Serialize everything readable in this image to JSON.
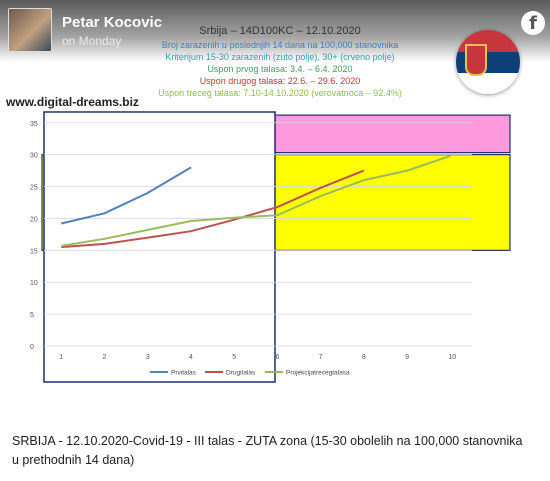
{
  "post": {
    "author": "Petar Kocovic",
    "time": "on Monday",
    "caption": "SRBIJA - 12.10.2020-Covid-19 - III talas - ZUTA zona (15-30 obolelih na 100,000 stanovnika u prethodnih 14 dana)",
    "network_icon": "f"
  },
  "image": {
    "watermark": "www.digital-dreams.biz",
    "title": "Srbija – 14D100KC – 12.10.2020",
    "lines": [
      "Broj zarazenih u poslednjih 14 dana na 100,000 stanovnika",
      "Kriterijum 15-30 zarazenih (zuto polje), 30+ (crveno polje)",
      "Uspon prvog talasa: 3.4. – 6.4. 2020",
      "Uspon drugog talasa: 22.6. – 29.6. 2020",
      "Uspon treceg talasa: 7.10-14.10.2020 (verovatnoca – 92.4%)"
    ],
    "colors": {
      "line1": "#3d7ec8",
      "line2": "#3aa0b0",
      "line3": "#3da05a",
      "line4": "#c0392b",
      "line5": "#8cbf3f"
    }
  },
  "chart_data": {
    "type": "line",
    "x": [
      1,
      2,
      3,
      4,
      5,
      6,
      7,
      8,
      9,
      10
    ],
    "x_ticks": [
      "1",
      "2",
      "3",
      "4",
      "5",
      "6",
      "7",
      "8",
      "9",
      "10"
    ],
    "y_ticks": [
      "0",
      "5",
      "10",
      "15",
      "20",
      "25",
      "30",
      "35"
    ],
    "ylim": [
      0,
      37
    ],
    "xlim": [
      0.6,
      10.5
    ],
    "series": [
      {
        "name": "Prvitalas",
        "color": "#4f81bd",
        "x": [
          1,
          2,
          3,
          4
        ],
        "values": [
          19.2,
          20.8,
          24.0,
          28.0
        ]
      },
      {
        "name": "Drugitalas",
        "color": "#c0504d",
        "x": [
          1,
          2,
          3,
          4,
          5,
          6,
          7,
          8
        ],
        "values": [
          15.5,
          16.0,
          17.0,
          18.0,
          19.8,
          21.8,
          24.8,
          27.5
        ]
      },
      {
        "name": "Projekcijatrecegtalasa",
        "color": "#9bbb59",
        "x": [
          1,
          2,
          3,
          4,
          5,
          6,
          7,
          8,
          9,
          10
        ],
        "values": [
          15.7,
          16.8,
          18.2,
          19.6,
          20.1,
          20.5,
          23.5,
          26.0,
          27.5,
          29.8
        ]
      }
    ],
    "zones": [
      {
        "label": "zuto polje",
        "from": 15,
        "to": 30,
        "color": "#ffff00"
      },
      {
        "label": "crveno polje",
        "from": 30,
        "to": 36.2,
        "color": "#ff99dd"
      }
    ],
    "grid": true,
    "legend": "bottom"
  }
}
